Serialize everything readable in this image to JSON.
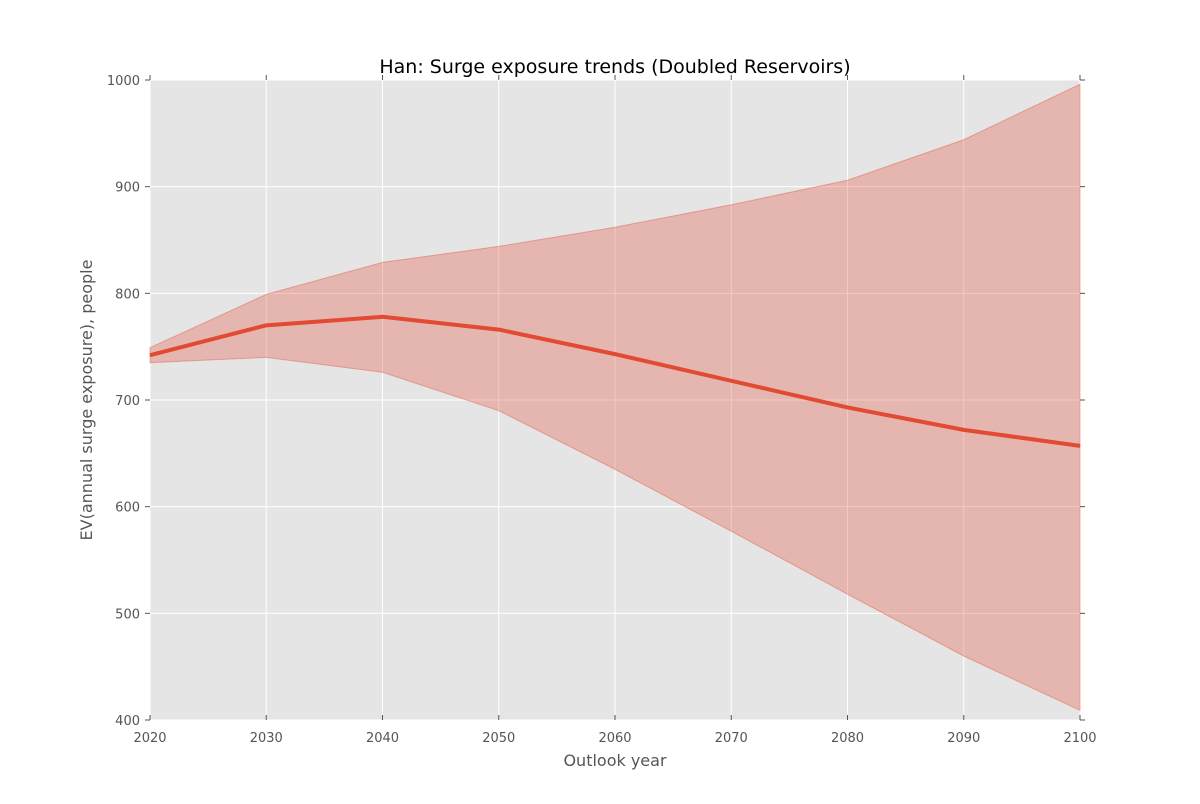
{
  "chart_data": {
    "type": "area",
    "title": "Han: Surge exposure trends (Doubled Reservoirs)",
    "xlabel": "Outlook year",
    "ylabel": "EV(annual surge exposure), people",
    "x": [
      2020,
      2030,
      2040,
      2050,
      2060,
      2070,
      2080,
      2090,
      2100
    ],
    "xlim": [
      2020,
      2100
    ],
    "ylim": [
      400,
      1000
    ],
    "xticks": [
      2020,
      2030,
      2040,
      2050,
      2060,
      2070,
      2080,
      2090,
      2100
    ],
    "yticks": [
      400,
      500,
      600,
      700,
      800,
      900,
      1000
    ],
    "grid": true,
    "series": [
      {
        "values": [
          742,
          770,
          778,
          766,
          743,
          718,
          693,
          672,
          657
        ],
        "color": "#e24a33"
      }
    ],
    "band": {
      "lower": [
        735,
        740,
        726,
        690,
        635,
        577,
        518,
        460,
        409
      ],
      "upper": [
        749,
        799,
        829,
        844,
        862,
        883,
        906,
        944,
        996
      ],
      "color": "#e24a33",
      "opacity": 0.3
    },
    "colors": {
      "plot_background": "#e5e5e5",
      "grid": "#ffffff",
      "tick_label": "#555555",
      "axis_label": "#555555",
      "title": "#000000"
    }
  }
}
